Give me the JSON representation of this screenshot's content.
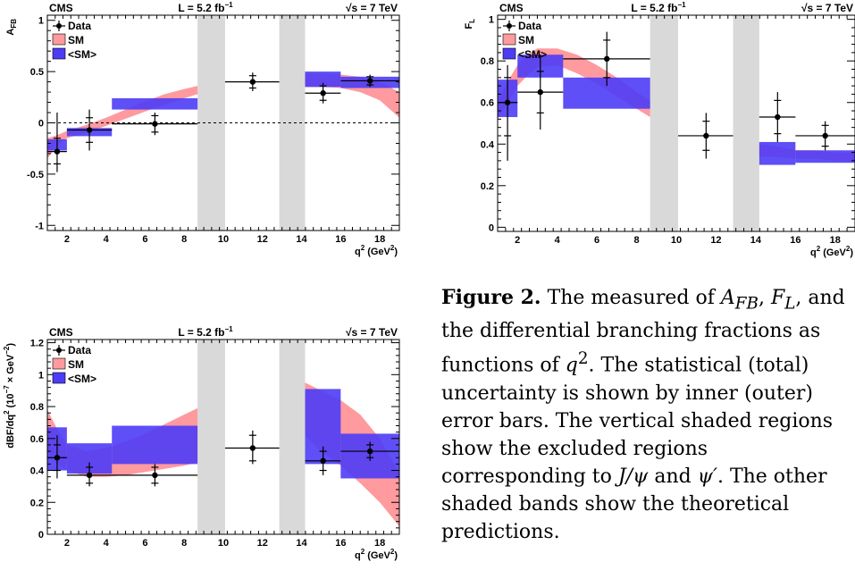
{
  "caption": {
    "label": "Figure 2.",
    "text_1": " The measured of ",
    "sym_afb": "A",
    "sym_afb_sub": "FB",
    "text_2": ",",
    "sym_fl": "F",
    "sym_fl_sub": "L",
    "text_3": ", and the differential branching fractions as functions of ",
    "sym_q": "q",
    "sym_q_sup": "2",
    "text_4": ". The statistical (total) uncertainty is shown by inner (outer) error bars. The vertical shaded regions show the excluded regions corresponding to ",
    "sym_jpsi": "J/ψ",
    "text_and": " and ",
    "sym_psip": "ψ′",
    "text_5": ". The other shaded bands show the theoretical predictions."
  },
  "chart_data": [
    {
      "type": "scatter",
      "id": "afb",
      "header_left": "CMS",
      "header_mid": "L = 5.2 fb",
      "header_mid_sup": "−1",
      "header_right": "√s = 7 TeV",
      "ylabel": "A",
      "ylabel_sub": "FB",
      "xlabel": "q",
      "xlabel_sup": "2",
      "xlabel_unit": " (GeV",
      "xlabel_unit_sup": "2",
      "xlabel_close": ")",
      "xlim": [
        1,
        19
      ],
      "ylim": [
        -1.05,
        1.05
      ],
      "xticks": [
        2,
        4,
        6,
        8,
        10,
        12,
        14,
        16,
        18
      ],
      "yticks": [
        -1,
        -0.5,
        0,
        0.5,
        1
      ],
      "ytick_labels": [
        "-1",
        "-0.5",
        "0",
        "0.5",
        "1"
      ],
      "zero_line": true,
      "legend": [
        "Data",
        "SM",
        "<SM>"
      ],
      "excluded_regions": [
        [
          8.68,
          10.09
        ],
        [
          12.86,
          14.18
        ]
      ],
      "sm_band": {
        "x": [
          1,
          1.5,
          2,
          3,
          4,
          5,
          6,
          7,
          8,
          8.68,
          14.18,
          15,
          16,
          17,
          18,
          19
        ],
        "lo": [
          -0.35,
          -0.22,
          -0.15,
          -0.09,
          -0.03,
          0.04,
          0.11,
          0.18,
          0.24,
          0.28,
          0.35,
          0.35,
          0.34,
          0.3,
          0.22,
          0.05
        ],
        "hi": [
          -0.15,
          -0.12,
          -0.08,
          -0.02,
          0.05,
          0.13,
          0.21,
          0.28,
          0.33,
          0.36,
          0.48,
          0.48,
          0.47,
          0.45,
          0.4,
          0.3
        ]
      },
      "avg_bins": [
        {
          "x0": 1,
          "x1": 2,
          "lo": -0.27,
          "hi": -0.16
        },
        {
          "x0": 2,
          "x1": 4.3,
          "lo": -0.13,
          "hi": -0.05
        },
        {
          "x0": 4.3,
          "x1": 8.68,
          "lo": 0.13,
          "hi": 0.24
        },
        {
          "x0": 14.18,
          "x1": 16,
          "lo": 0.35,
          "hi": 0.5
        },
        {
          "x0": 16,
          "x1": 19,
          "lo": 0.34,
          "hi": 0.45
        }
      ],
      "points": [
        {
          "x": 1.5,
          "xlo": 1,
          "xhi": 2,
          "y": -0.28,
          "stat": [
            -0.12,
            0.13
          ],
          "tot": [
            -0.2,
            0.38
          ]
        },
        {
          "x": 3.15,
          "xlo": 2,
          "xhi": 4.3,
          "y": -0.07,
          "stat": [
            -0.12,
            0.12
          ],
          "tot": [
            -0.2,
            0.2
          ]
        },
        {
          "x": 6.5,
          "xlo": 4.3,
          "xhi": 8.68,
          "y": -0.01,
          "stat": [
            -0.08,
            0.08
          ],
          "tot": [
            -0.11,
            0.11
          ]
        },
        {
          "x": 11.5,
          "xlo": 10.09,
          "xhi": 12.86,
          "y": 0.4,
          "stat": [
            -0.06,
            0.06
          ],
          "tot": [
            -0.09,
            0.09
          ]
        },
        {
          "x": 15.1,
          "xlo": 14.18,
          "xhi": 16,
          "y": 0.29,
          "stat": [
            -0.07,
            0.07
          ],
          "tot": [
            -0.1,
            0.1
          ]
        },
        {
          "x": 17.5,
          "xlo": 16,
          "xhi": 19,
          "y": 0.41,
          "stat": [
            -0.04,
            0.04
          ],
          "tot": [
            -0.06,
            0.06
          ]
        }
      ]
    },
    {
      "type": "scatter",
      "id": "fl",
      "header_left": "CMS",
      "header_mid": "L = 5.2 fb",
      "header_mid_sup": "−1",
      "header_right": "√s = 7 TeV",
      "ylabel": "F",
      "ylabel_sub": "L",
      "xlabel": "q",
      "xlabel_sup": "2",
      "xlabel_unit": " (GeV",
      "xlabel_unit_sup": "2",
      "xlabel_close": ")",
      "xlim": [
        1,
        19
      ],
      "ylim": [
        -0.02,
        1.02
      ],
      "xticks": [
        2,
        4,
        6,
        8,
        10,
        12,
        14,
        16,
        18
      ],
      "yticks": [
        0,
        0.2,
        0.4,
        0.6,
        0.8,
        1
      ],
      "ytick_labels": [
        "0",
        "0.2",
        "0.4",
        "0.6",
        "0.8",
        "1"
      ],
      "zero_line": false,
      "legend": [
        "Data",
        "SM",
        "<SM>"
      ],
      "excluded_regions": [
        [
          8.68,
          10.09
        ],
        [
          12.86,
          14.18
        ]
      ],
      "sm_band": {
        "x": [
          1,
          1.5,
          2,
          2.5,
          3,
          4,
          5,
          6,
          7,
          8,
          8.68,
          14.18,
          15,
          16,
          17,
          18,
          19
        ],
        "lo": [
          0.52,
          0.6,
          0.68,
          0.73,
          0.77,
          0.78,
          0.74,
          0.69,
          0.63,
          0.57,
          0.53,
          0.34,
          0.34,
          0.33,
          0.33,
          0.32,
          0.32
        ],
        "hi": [
          0.6,
          0.7,
          0.78,
          0.83,
          0.86,
          0.86,
          0.83,
          0.78,
          0.72,
          0.65,
          0.61,
          0.4,
          0.39,
          0.37,
          0.37,
          0.36,
          0.36
        ]
      },
      "avg_bins": [
        {
          "x0": 1,
          "x1": 2,
          "lo": 0.53,
          "hi": 0.71
        },
        {
          "x0": 2,
          "x1": 4.3,
          "lo": 0.72,
          "hi": 0.83
        },
        {
          "x0": 4.3,
          "x1": 8.68,
          "lo": 0.57,
          "hi": 0.72
        },
        {
          "x0": 14.18,
          "x1": 16,
          "lo": 0.3,
          "hi": 0.41
        },
        {
          "x0": 16,
          "x1": 19,
          "lo": 0.31,
          "hi": 0.37
        }
      ],
      "points": [
        {
          "x": 1.5,
          "xlo": 1,
          "xhi": 2,
          "y": 0.6,
          "stat": [
            -0.16,
            0.12
          ],
          "tot": [
            -0.28,
            0.18
          ]
        },
        {
          "x": 3.15,
          "xlo": 2,
          "xhi": 4.3,
          "y": 0.65,
          "stat": [
            -0.1,
            0.1
          ],
          "tot": [
            -0.18,
            0.18
          ]
        },
        {
          "x": 6.5,
          "xlo": 4.3,
          "xhi": 8.68,
          "y": 0.81,
          "stat": [
            -0.09,
            0.09
          ],
          "tot": [
            -0.13,
            0.13
          ]
        },
        {
          "x": 11.5,
          "xlo": 10.09,
          "xhi": 12.86,
          "y": 0.44,
          "stat": [
            -0.07,
            0.07
          ],
          "tot": [
            -0.11,
            0.11
          ]
        },
        {
          "x": 15.1,
          "xlo": 14.18,
          "xhi": 16,
          "y": 0.53,
          "stat": [
            -0.08,
            0.08
          ],
          "tot": [
            -0.12,
            0.12
          ]
        },
        {
          "x": 17.5,
          "xlo": 16,
          "xhi": 19,
          "y": 0.44,
          "stat": [
            -0.05,
            0.05
          ],
          "tot": [
            -0.07,
            0.07
          ]
        }
      ]
    },
    {
      "type": "scatter",
      "id": "dbf",
      "header_left": "CMS",
      "header_mid": "L = 5.2 fb",
      "header_mid_sup": "−1",
      "header_right": "√s = 7 TeV",
      "ylabel": "dBF/dq",
      "ylabel_sup": "2",
      "ylabel_unit": " (10",
      "ylabel_unit_sup": "−7",
      "ylabel_unit_rest": " × GeV",
      "ylabel_unit_sup2": "−2",
      "ylabel_close": ")",
      "xlabel": "q",
      "xlabel_sup": "2",
      "xlabel_unit": " (GeV",
      "xlabel_unit_sup": "2",
      "xlabel_close": ")",
      "xlim": [
        1,
        19
      ],
      "ylim": [
        0,
        1.22
      ],
      "xticks": [
        2,
        4,
        6,
        8,
        10,
        12,
        14,
        16,
        18
      ],
      "yticks": [
        0,
        0.2,
        0.4,
        0.6,
        0.8,
        1,
        1.2
      ],
      "ytick_labels": [
        "0",
        "0.2",
        "0.4",
        "0.6",
        "0.8",
        "1",
        "1.2"
      ],
      "zero_line": false,
      "legend": [
        "Data",
        "SM",
        "<SM>"
      ],
      "excluded_regions": [
        [
          8.68,
          10.09
        ],
        [
          12.86,
          14.18
        ]
      ],
      "sm_band": {
        "x": [
          1,
          1.5,
          2,
          3,
          4,
          5,
          6,
          7,
          8,
          8.68,
          14.18,
          15,
          16,
          17,
          18,
          19
        ],
        "lo": [
          0.52,
          0.44,
          0.4,
          0.36,
          0.36,
          0.37,
          0.39,
          0.41,
          0.43,
          0.45,
          0.62,
          0.52,
          0.43,
          0.32,
          0.2,
          0.05
        ],
        "hi": [
          0.78,
          0.66,
          0.56,
          0.52,
          0.54,
          0.58,
          0.63,
          0.69,
          0.75,
          0.79,
          0.95,
          0.9,
          0.84,
          0.75,
          0.6,
          0.38
        ]
      },
      "avg_bins": [
        {
          "x0": 1,
          "x1": 2,
          "lo": 0.4,
          "hi": 0.67
        },
        {
          "x0": 2,
          "x1": 4.3,
          "lo": 0.38,
          "hi": 0.57
        },
        {
          "x0": 4.3,
          "x1": 8.68,
          "lo": 0.44,
          "hi": 0.68
        },
        {
          "x0": 14.18,
          "x1": 16,
          "lo": 0.44,
          "hi": 0.91
        },
        {
          "x0": 16,
          "x1": 19,
          "lo": 0.35,
          "hi": 0.63
        }
      ],
      "points": [
        {
          "x": 1.5,
          "xlo": 1,
          "xhi": 2,
          "y": 0.48,
          "stat": [
            -0.08,
            0.08
          ],
          "tot": [
            -0.13,
            0.14
          ]
        },
        {
          "x": 3.15,
          "xlo": 2,
          "xhi": 4.3,
          "y": 0.37,
          "stat": [
            -0.05,
            0.05
          ],
          "tot": [
            -0.07,
            0.08
          ]
        },
        {
          "x": 6.5,
          "xlo": 4.3,
          "xhi": 8.68,
          "y": 0.37,
          "stat": [
            -0.05,
            0.05
          ],
          "tot": [
            -0.07,
            0.07
          ]
        },
        {
          "x": 11.5,
          "xlo": 10.09,
          "xhi": 12.86,
          "y": 0.54,
          "stat": [
            -0.08,
            0.08
          ],
          "tot": [
            -0.1,
            0.11
          ]
        },
        {
          "x": 15.1,
          "xlo": 14.18,
          "xhi": 16,
          "y": 0.46,
          "stat": [
            -0.06,
            0.06
          ],
          "tot": [
            -0.09,
            0.09
          ]
        },
        {
          "x": 17.5,
          "xlo": 16,
          "xhi": 19,
          "y": 0.52,
          "stat": [
            -0.04,
            0.04
          ],
          "tot": [
            -0.06,
            0.06
          ]
        }
      ]
    }
  ],
  "colors": {
    "sm_band": "#ff9a9e",
    "avg_band": "#4d3cf5",
    "excluded": "#d9d9d9",
    "data": "#000000"
  }
}
